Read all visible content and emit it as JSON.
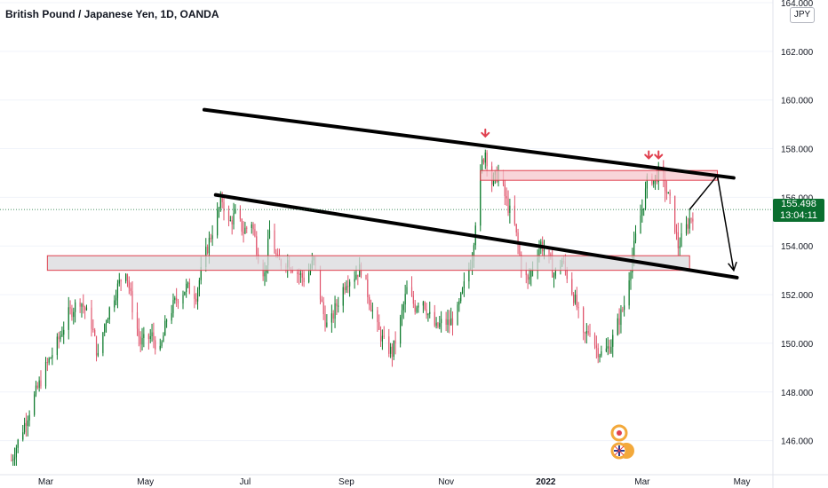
{
  "header": {
    "title": "British Pound / Japanese Yen, 1D, OANDA",
    "unit_badge": "JPY"
  },
  "last_price": {
    "value": "155.498",
    "countdown": "13:04:11"
  },
  "colors": {
    "bull": "#089981",
    "bull_body": "#0b7a2b",
    "bear": "#e0536b",
    "zone_red_fill": "#f6c6cc",
    "zone_red_stroke": "#e0404f",
    "zone_gray_fill": "#d9d9dc",
    "trendline": "#000000",
    "arrow_marker": "#e0404f",
    "price_tag": "#0a6e2f"
  },
  "chart_data": {
    "type": "candlestick",
    "title": "British Pound / Japanese Yen, 1D, OANDA",
    "xlabel": "",
    "ylabel": "",
    "y_unit": "JPY",
    "ylim": [
      144.6,
      164.0
    ],
    "y_ticks": [
      "164.000",
      "162.000",
      "160.000",
      "158.000",
      "156.000",
      "154.000",
      "152.000",
      "150.000",
      "148.000",
      "146.000"
    ],
    "x_ticks": [
      {
        "label": "Mar",
        "year": false
      },
      {
        "label": "May",
        "year": false
      },
      {
        "label": "Jul",
        "year": false
      },
      {
        "label": "Sep",
        "year": false
      },
      {
        "label": "Nov",
        "year": false
      },
      {
        "label": "2022",
        "year": true
      },
      {
        "label": "Mar",
        "year": false
      },
      {
        "label": "May",
        "year": false
      }
    ],
    "x_tick_dates": [
      "2021-03-01",
      "2021-05-01",
      "2021-07-01",
      "2021-09-01",
      "2021-11-01",
      "2022-01-01",
      "2022-03-01",
      "2022-05-01"
    ],
    "date_range": [
      "2021-02-01",
      "2022-05-20"
    ],
    "price_path": [
      [
        "2021-02-08",
        145.2
      ],
      [
        "2021-02-15",
        146.5
      ],
      [
        "2021-02-22",
        147.8
      ],
      [
        "2021-03-01",
        149.0
      ],
      [
        "2021-03-08",
        150.0
      ],
      [
        "2021-03-15",
        151.2
      ],
      [
        "2021-03-22",
        151.8
      ],
      [
        "2021-03-29",
        150.8
      ],
      [
        "2021-04-02",
        149.4
      ],
      [
        "2021-04-06",
        150.8
      ],
      [
        "2021-04-12",
        152.0
      ],
      [
        "2021-04-19",
        153.1
      ],
      [
        "2021-04-23",
        151.5
      ],
      [
        "2021-04-28",
        150.0
      ],
      [
        "2021-05-05",
        150.3
      ],
      [
        "2021-05-10",
        149.6
      ],
      [
        "2021-05-14",
        151.0
      ],
      [
        "2021-05-20",
        151.8
      ],
      [
        "2021-05-26",
        152.3
      ],
      [
        "2021-06-01",
        152.0
      ],
      [
        "2021-06-05",
        153.2
      ],
      [
        "2021-06-09",
        154.2
      ],
      [
        "2021-06-14",
        155.3
      ],
      [
        "2021-06-17",
        155.9
      ],
      [
        "2021-06-21",
        154.9
      ],
      [
        "2021-06-25",
        155.3
      ],
      [
        "2021-06-30",
        154.6
      ],
      [
        "2021-07-05",
        155.0
      ],
      [
        "2021-07-09",
        153.6
      ],
      [
        "2021-07-13",
        152.8
      ],
      [
        "2021-07-16",
        154.6
      ],
      [
        "2021-07-21",
        153.3
      ],
      [
        "2021-07-27",
        153.4
      ],
      [
        "2021-08-02",
        152.9
      ],
      [
        "2021-08-07",
        152.6
      ],
      [
        "2021-08-12",
        153.4
      ],
      [
        "2021-08-18",
        151.2
      ],
      [
        "2021-08-21",
        150.5
      ],
      [
        "2021-08-25",
        151.4
      ],
      [
        "2021-09-01",
        152.6
      ],
      [
        "2021-09-06",
        152.8
      ],
      [
        "2021-09-10",
        153.1
      ],
      [
        "2021-09-15",
        151.8
      ],
      [
        "2021-09-20",
        150.6
      ],
      [
        "2021-09-24",
        150.0
      ],
      [
        "2021-09-29",
        149.6
      ],
      [
        "2021-10-03",
        150.6
      ],
      [
        "2021-10-08",
        152.2
      ],
      [
        "2021-10-13",
        151.5
      ],
      [
        "2021-10-17",
        152.0
      ],
      [
        "2021-10-21",
        151.2
      ],
      [
        "2021-10-26",
        150.6
      ],
      [
        "2021-10-30",
        150.9
      ],
      [
        "2021-11-03",
        150.8
      ],
      [
        "2021-11-08",
        151.3
      ],
      [
        "2021-11-13",
        152.6
      ],
      [
        "2021-11-17",
        153.6
      ],
      [
        "2021-11-20",
        155.8
      ],
      [
        "2021-11-23",
        157.4
      ],
      [
        "2021-11-25",
        157.9
      ],
      [
        "2021-11-29",
        156.6
      ],
      [
        "2021-12-03",
        157.0
      ],
      [
        "2021-12-08",
        155.8
      ],
      [
        "2021-12-13",
        154.8
      ],
      [
        "2021-12-17",
        153.2
      ],
      [
        "2021-12-21",
        152.5
      ],
      [
        "2021-12-25",
        153.4
      ],
      [
        "2021-12-29",
        154.1
      ],
      [
        "2022-01-02",
        153.6
      ],
      [
        "2022-01-06",
        152.8
      ],
      [
        "2022-01-11",
        153.4
      ],
      [
        "2022-01-15",
        152.6
      ],
      [
        "2022-01-20",
        151.5
      ],
      [
        "2022-01-24",
        150.2
      ],
      [
        "2022-01-28",
        150.6
      ],
      [
        "2022-02-01",
        149.8
      ],
      [
        "2022-02-05",
        149.5
      ],
      [
        "2022-02-10",
        150.0
      ],
      [
        "2022-02-14",
        150.8
      ],
      [
        "2022-02-18",
        151.6
      ],
      [
        "2022-02-22",
        153.2
      ],
      [
        "2022-02-26",
        154.7
      ],
      [
        "2022-03-02",
        155.8
      ],
      [
        "2022-03-05",
        157.0
      ],
      [
        "2022-03-08",
        156.7
      ],
      [
        "2022-03-11",
        157.0
      ],
      [
        "2022-03-15",
        156.4
      ],
      [
        "2022-03-19",
        155.6
      ],
      [
        "2022-03-23",
        154.0
      ],
      [
        "2022-03-26",
        154.4
      ],
      [
        "2022-03-30",
        155.1
      ],
      [
        "2022-04-03",
        155.498
      ]
    ],
    "annotations": {
      "trendlines": [
        {
          "name": "upper channel line",
          "from": [
            "2021-06-06",
            159.6
          ],
          "to": [
            "2022-04-26",
            156.8
          ]
        },
        {
          "name": "lower channel line",
          "from": [
            "2021-06-13",
            156.1
          ],
          "to": [
            "2022-04-28",
            152.7
          ]
        }
      ],
      "zones": [
        {
          "name": "resistance zone",
          "from": [
            "2021-11-22",
            156.7
          ],
          "to": [
            "2022-04-16",
            157.1
          ],
          "color": "red"
        },
        {
          "name": "support zone",
          "from": [
            "2021-03-02",
            153.0
          ],
          "to": [
            "2022-03-30",
            153.6
          ],
          "color": "gray"
        }
      ],
      "projection": [
        [
          "2022-03-30",
          155.498
        ],
        [
          "2022-04-16",
          156.9
        ],
        [
          "2022-04-26",
          153.0
        ]
      ],
      "markers": [
        {
          "name": "top marker 1",
          "at": [
            "2021-11-25",
            158.5
          ]
        },
        {
          "name": "top marker 2",
          "at": [
            "2022-03-05",
            157.6
          ]
        },
        {
          "name": "top marker 3",
          "at": [
            "2022-03-11",
            157.6
          ]
        }
      ]
    }
  }
}
